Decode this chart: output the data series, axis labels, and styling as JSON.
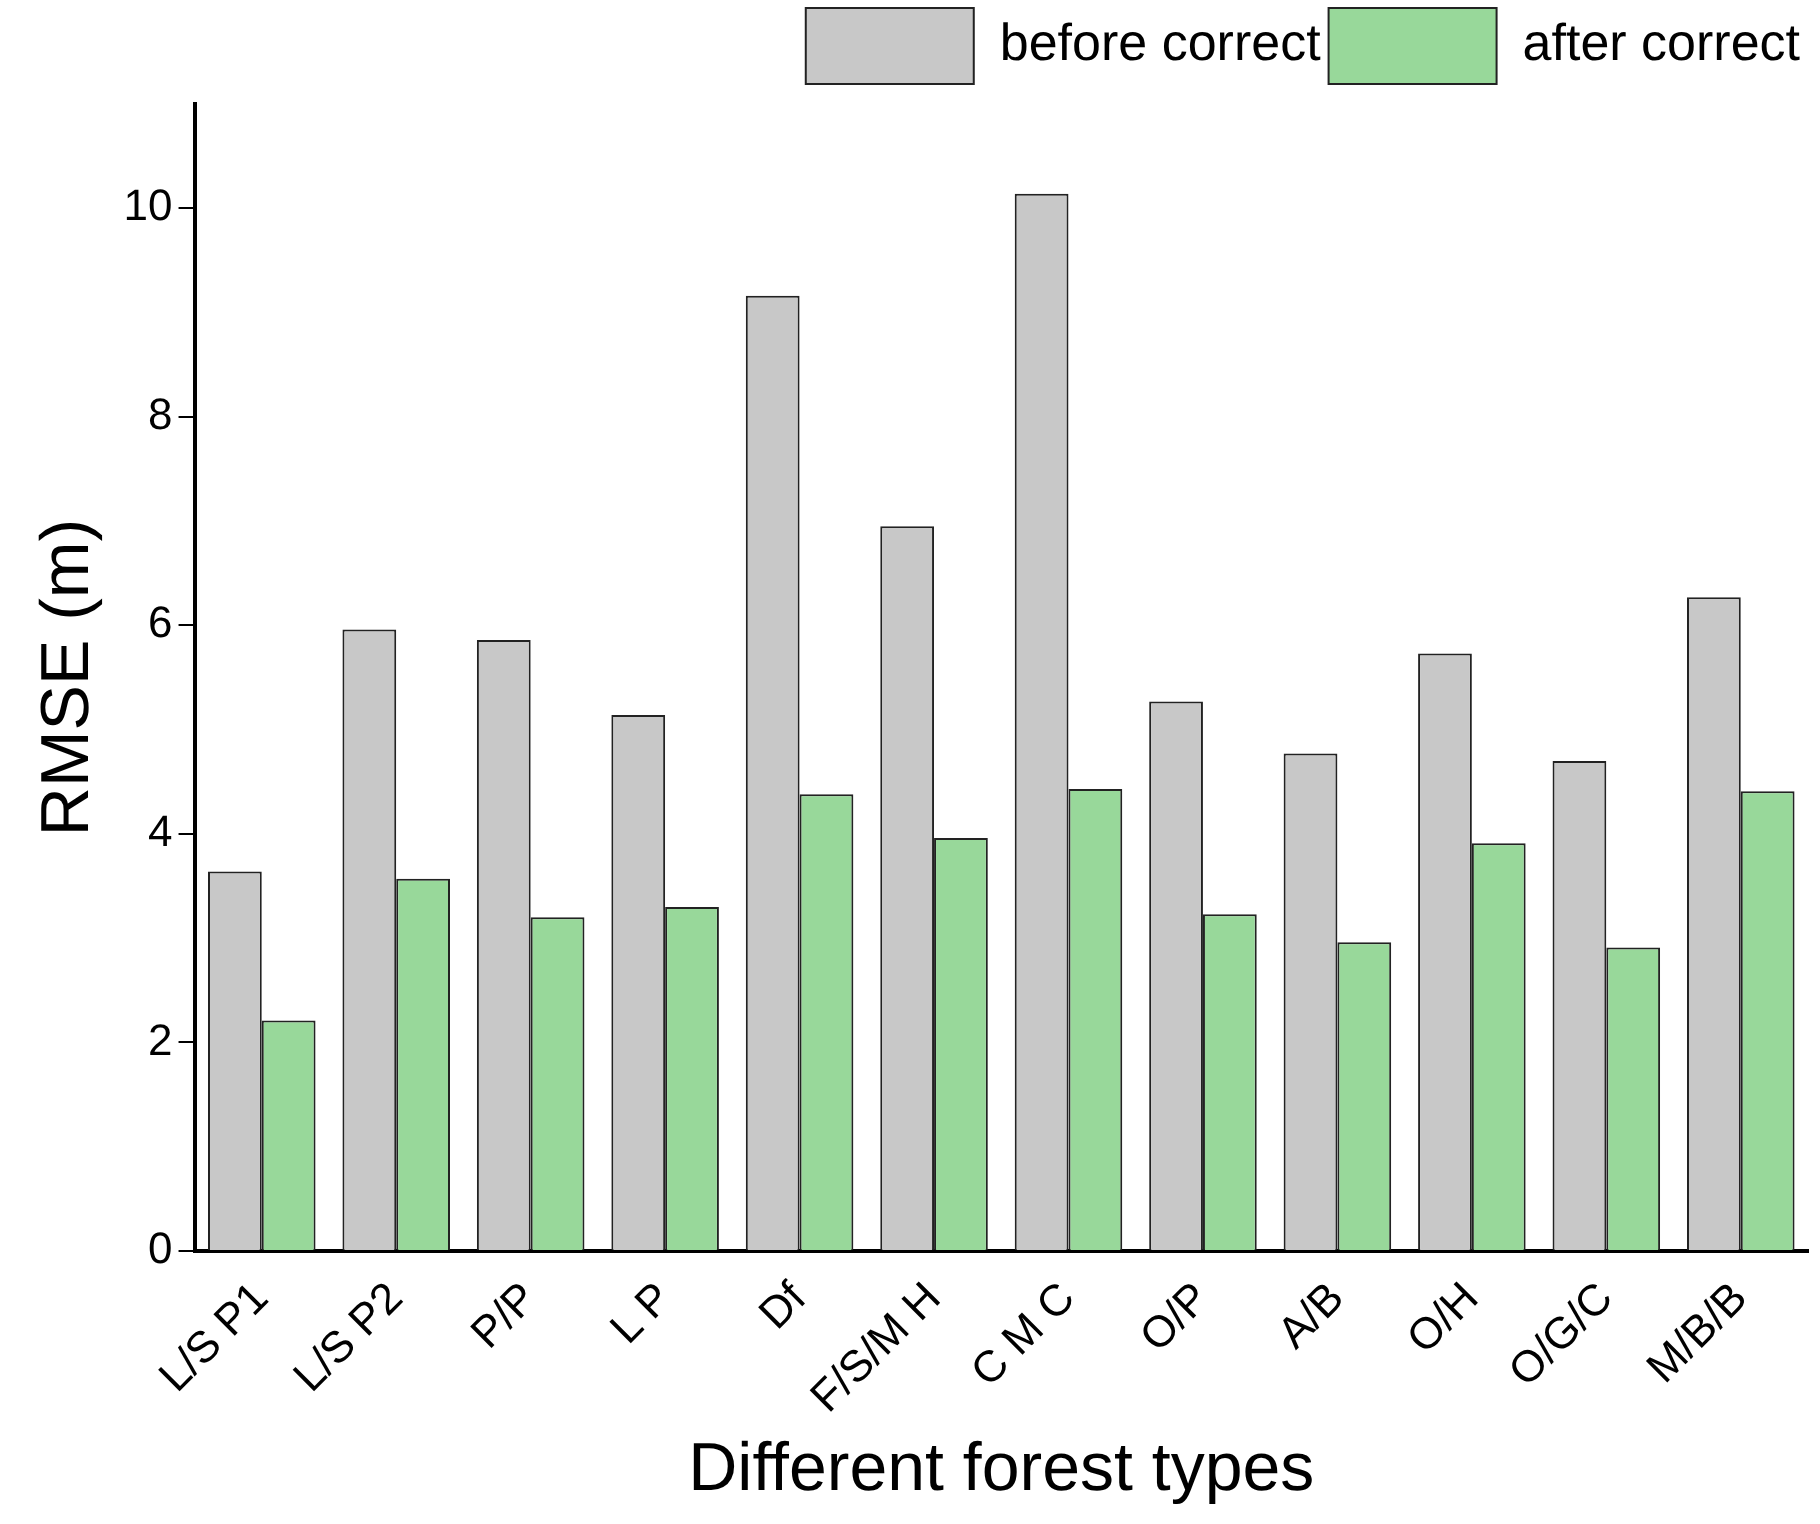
{
  "chart_data": {
    "type": "bar",
    "xlabel": "Different forest types",
    "ylabel": "RMSE (m)",
    "categories": [
      "L/S P1",
      "L/S P2",
      "P/P",
      "L P",
      "Df",
      "F/S/M H",
      "C M C",
      "O/P",
      "A/B",
      "O/H",
      "O/G/C",
      "M/B/B"
    ],
    "series": [
      {
        "name": "before correct",
        "color": "#c8c8c8",
        "values": [
          3.64,
          5.96,
          5.86,
          5.14,
          9.16,
          6.95,
          10.14,
          5.27,
          4.77,
          5.73,
          4.7,
          6.27
        ]
      },
      {
        "name": "after correct",
        "color": "#98d89a",
        "values": [
          2.21,
          3.57,
          3.2,
          3.3,
          4.38,
          3.96,
          4.43,
          3.23,
          2.96,
          3.91,
          2.91,
          4.41
        ]
      }
    ],
    "ylim": [
      0,
      11
    ],
    "yticks": [
      0,
      2,
      4,
      6,
      8,
      10
    ],
    "grid": false,
    "legend": "top right"
  }
}
